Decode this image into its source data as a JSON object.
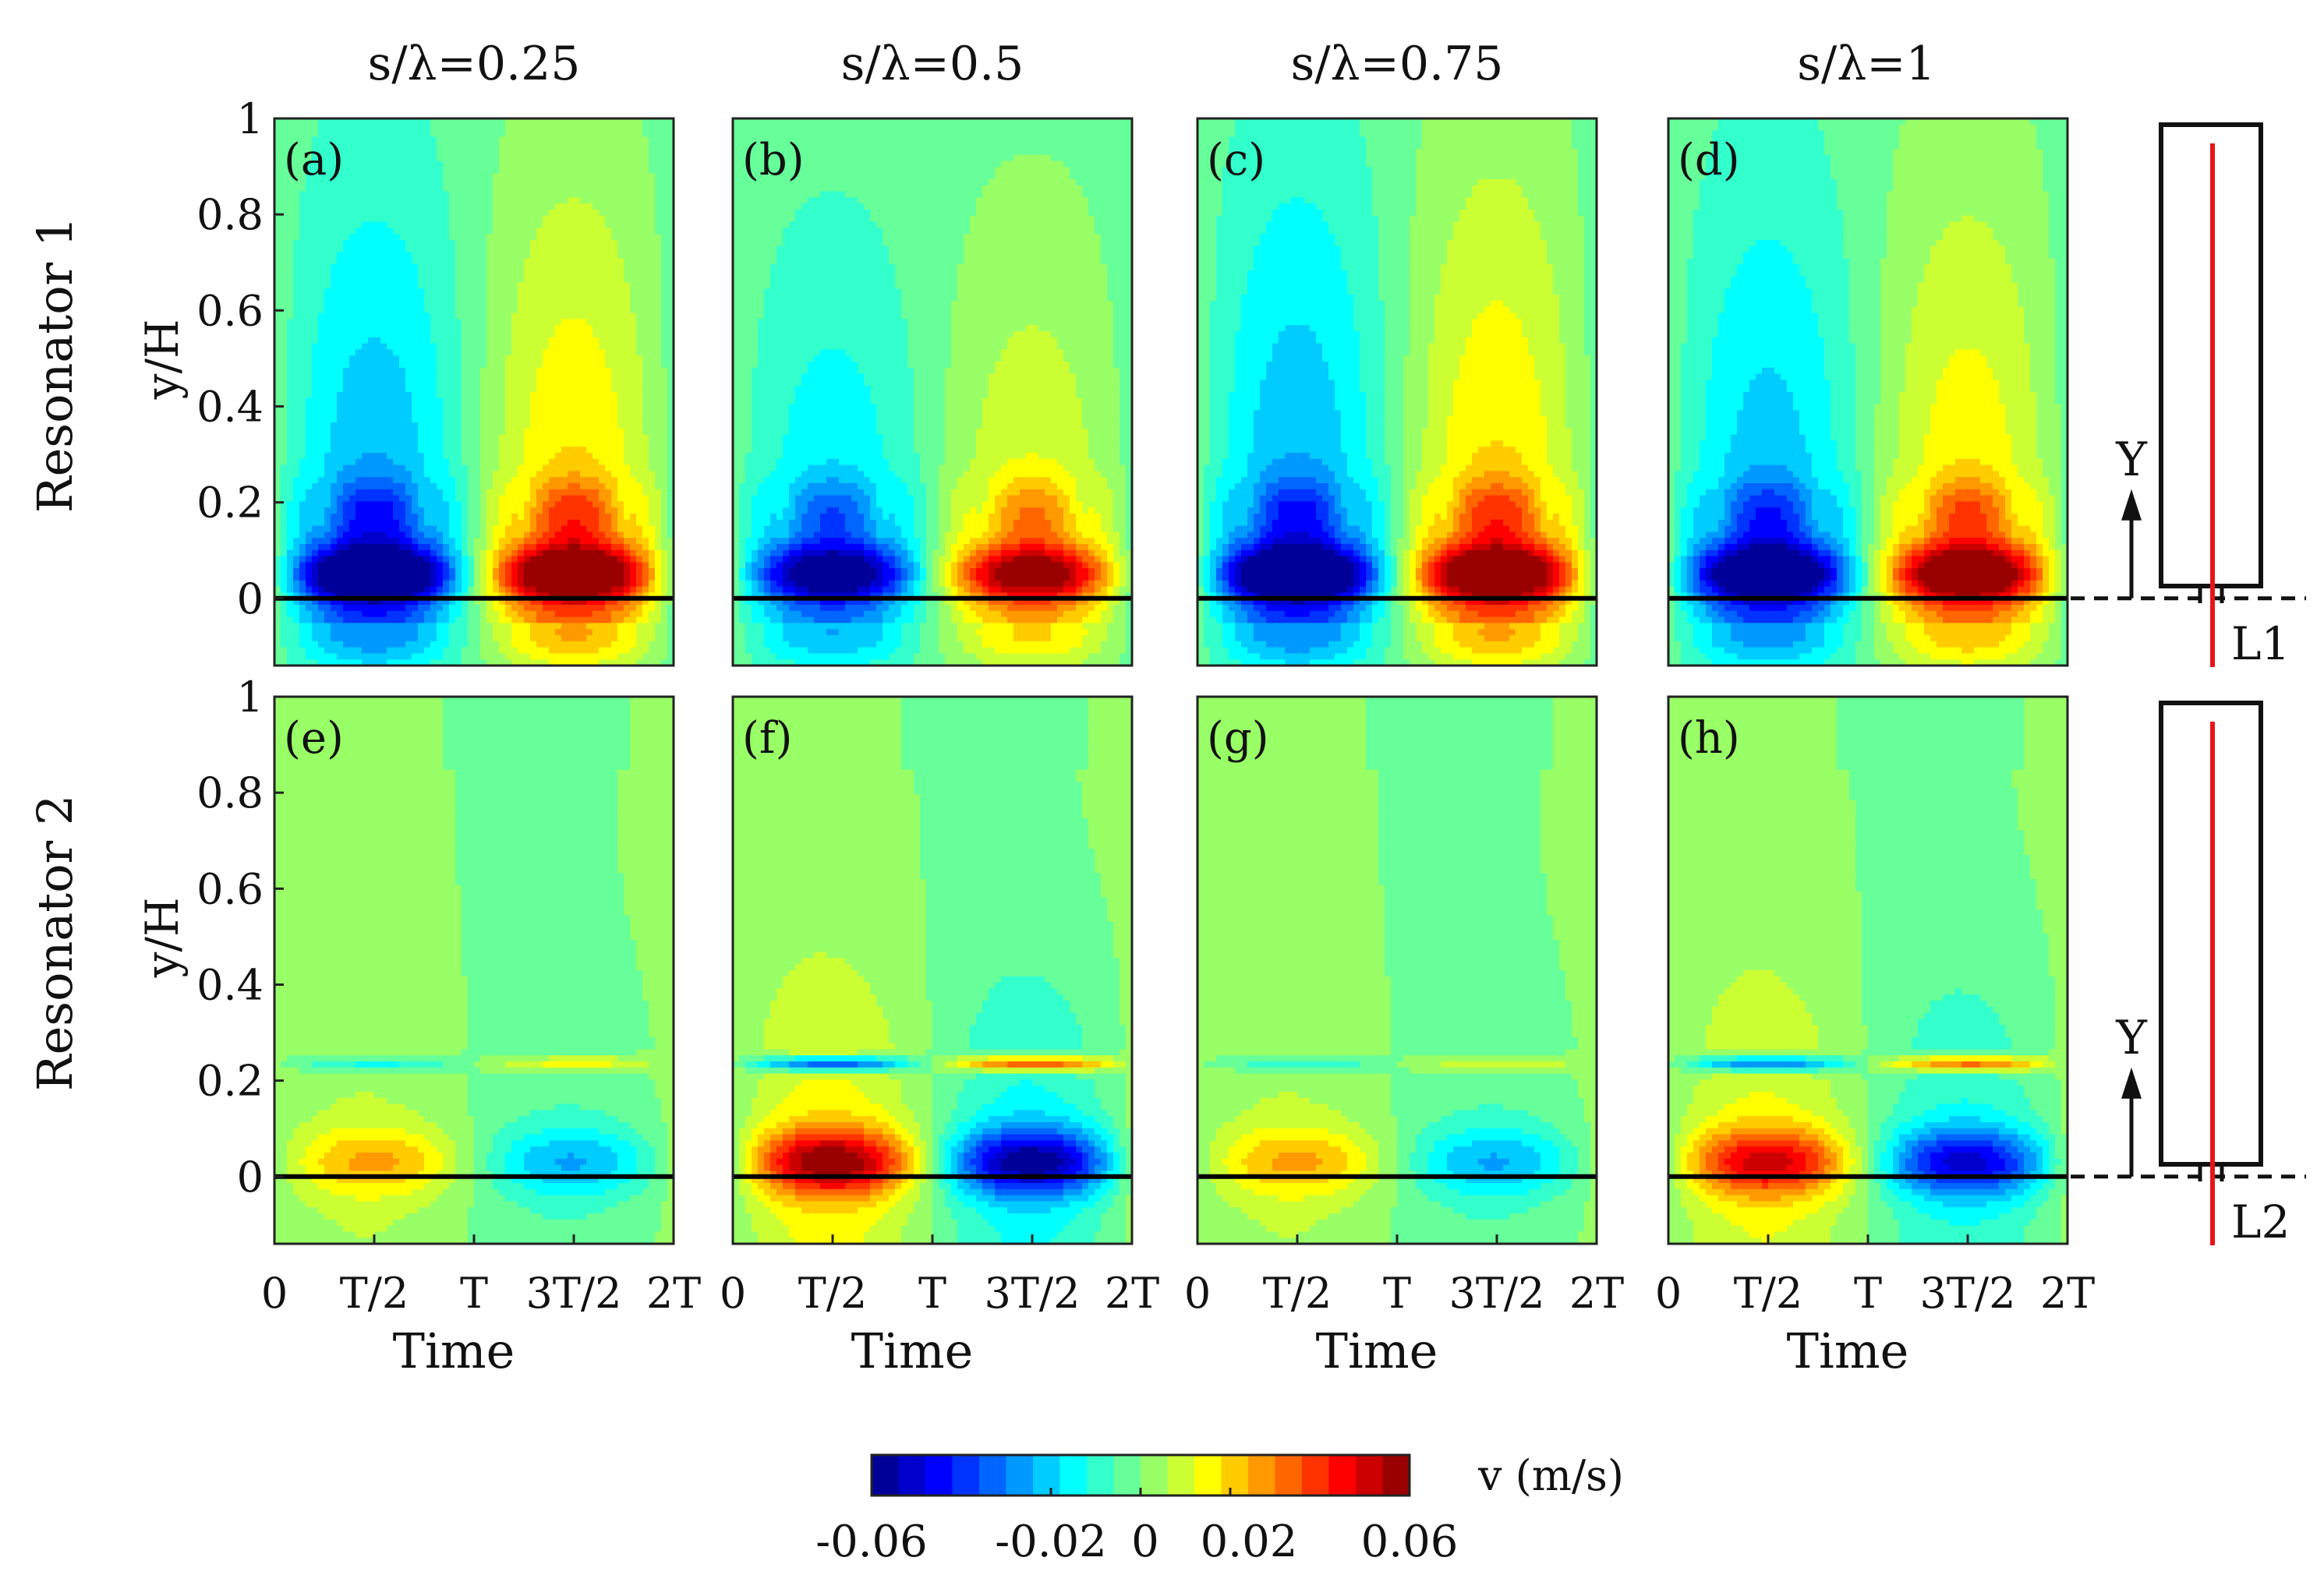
{
  "chart_data": {
    "type": "heatmap",
    "quantity_label": "v (m/s)",
    "x_label": "Time",
    "y_label": "y/H",
    "x_ticks": [
      "0",
      "T/2",
      "T",
      "3T/2",
      "2T"
    ],
    "x_tick_values": [
      0,
      0.5,
      1,
      1.5,
      2
    ],
    "y_ticks": [
      "0",
      "0.2",
      "0.4",
      "0.6",
      "0.8",
      "1"
    ],
    "y_tick_values": [
      0,
      0.2,
      0.4,
      0.6,
      0.8,
      1
    ],
    "y_range": [
      -0.14,
      1
    ],
    "x_range": [
      0,
      2
    ],
    "column_titles": [
      "s/λ=0.25",
      "s/λ=0.5",
      "s/λ=0.75",
      "s/λ=1"
    ],
    "row_titles": [
      "Resonator 1",
      "Resonator 2"
    ],
    "colorbar": {
      "min": -0.06,
      "max": 0.06,
      "tick_labels": [
        "-0.06",
        "-0.02",
        "0",
        "0.02",
        "0.06"
      ],
      "tick_values": [
        -0.06,
        -0.02,
        0,
        0.02,
        0.06
      ],
      "levels": 20,
      "colormap": "jet"
    },
    "panels": [
      {
        "label": "(a)",
        "row": 0,
        "col": 0,
        "mode": "r1",
        "peak_velocity": 0.06,
        "wake_amplitude": 0.022,
        "wake_extent": 0.75,
        "slot_y": 0.06,
        "slot_velocity": 0
      },
      {
        "label": "(b)",
        "row": 0,
        "col": 1,
        "mode": "r1",
        "peak_velocity": 0.052,
        "wake_amplitude": 0.015,
        "wake_extent": 0.62,
        "slot_y": 0.06,
        "slot_velocity": 0
      },
      {
        "label": "(c)",
        "row": 0,
        "col": 2,
        "mode": "r1",
        "peak_velocity": 0.06,
        "wake_amplitude": 0.022,
        "wake_extent": 0.8,
        "slot_y": 0.06,
        "slot_velocity": 0
      },
      {
        "label": "(d)",
        "row": 0,
        "col": 3,
        "mode": "r1",
        "peak_velocity": 0.058,
        "wake_amplitude": 0.02,
        "wake_extent": 0.75,
        "slot_y": 0.06,
        "slot_velocity": 0
      },
      {
        "label": "(e)",
        "row": 1,
        "col": 0,
        "mode": "r2",
        "peak_velocity": 0.02,
        "wake_amplitude": 0.004,
        "wake_extent": 0.3,
        "slot_y": 0.235,
        "slot_velocity": 0.018
      },
      {
        "label": "(f)",
        "row": 1,
        "col": 1,
        "mode": "r2",
        "peak_velocity": 0.048,
        "wake_amplitude": 0.012,
        "wake_extent": 0.35,
        "slot_y": 0.235,
        "slot_velocity": 0.045
      },
      {
        "label": "(g)",
        "row": 1,
        "col": 2,
        "mode": "r2",
        "peak_velocity": 0.02,
        "wake_amplitude": 0.004,
        "wake_extent": 0.3,
        "slot_y": 0.235,
        "slot_velocity": 0.015
      },
      {
        "label": "(h)",
        "row": 1,
        "col": 3,
        "mode": "r2",
        "peak_velocity": 0.04,
        "wake_amplitude": 0.01,
        "wake_extent": 0.35,
        "slot_y": 0.235,
        "slot_velocity": 0.04
      }
    ],
    "schematics": [
      {
        "row": 0,
        "line_label": "L1",
        "axis_label": "Y"
      },
      {
        "row": 1,
        "line_label": "L2",
        "axis_label": "Y"
      }
    ],
    "colors": {
      "zero_line": "#000000",
      "measurement_line": "#e8141b",
      "frame": "#222222"
    }
  }
}
